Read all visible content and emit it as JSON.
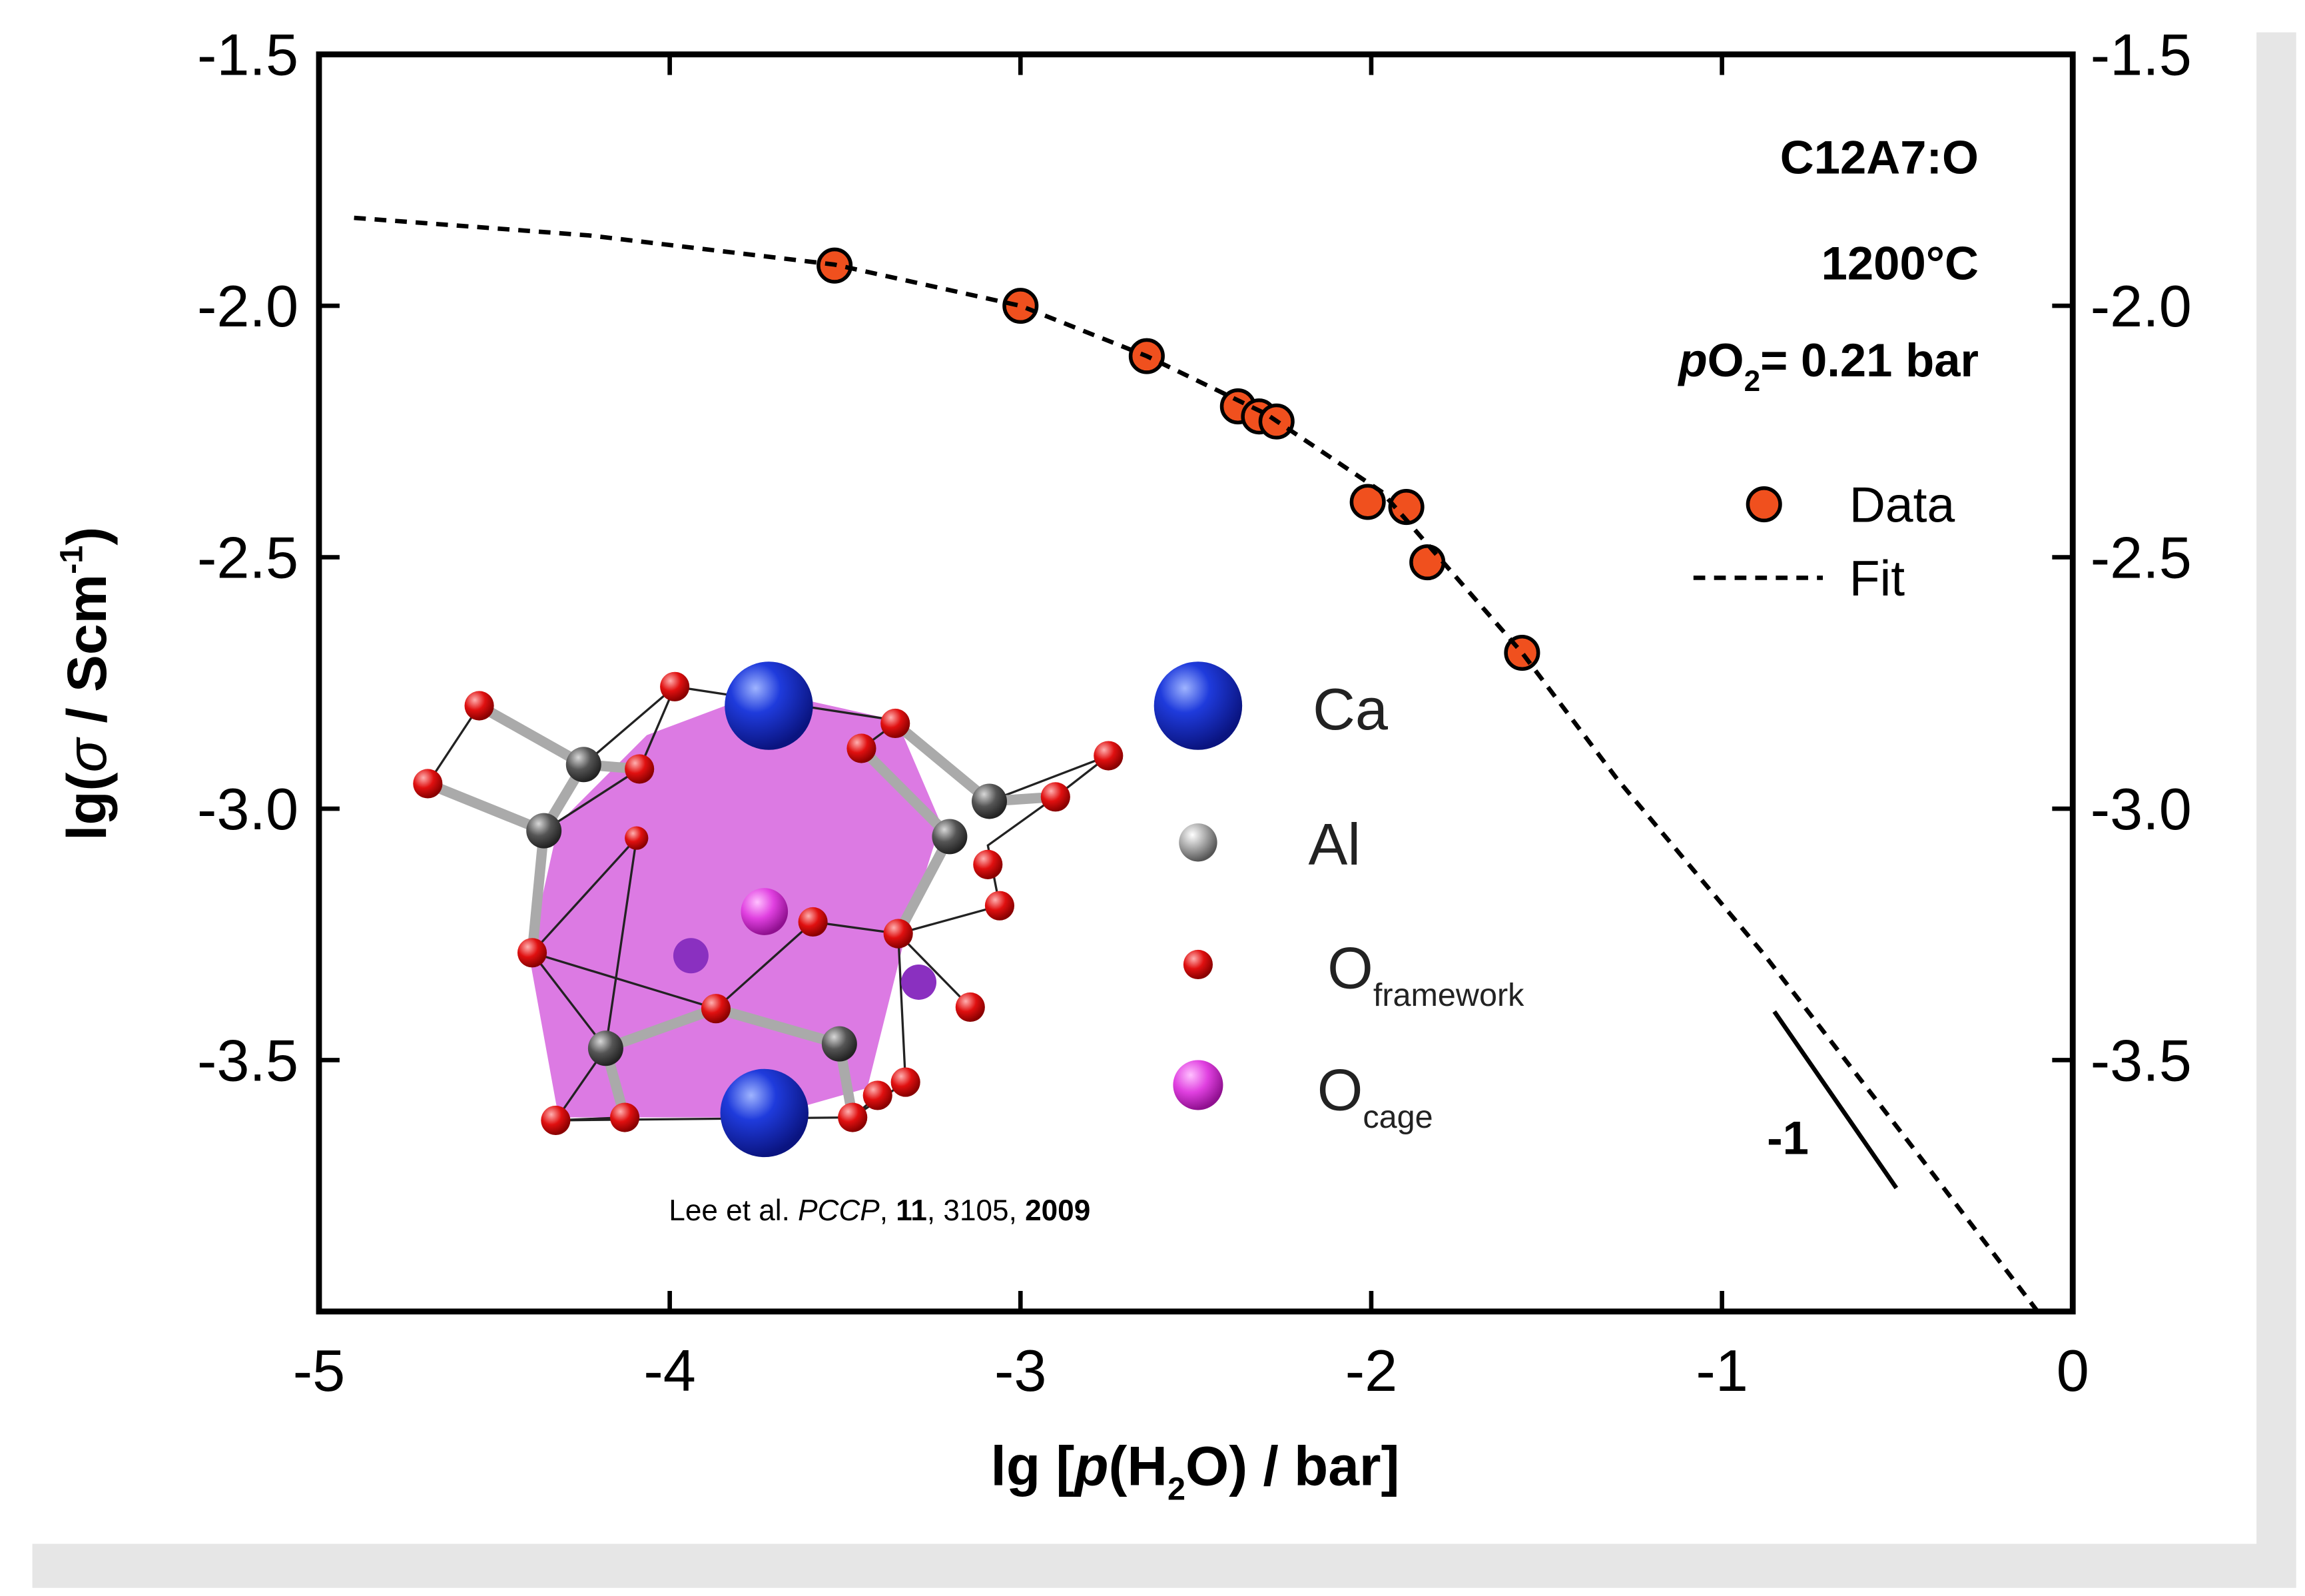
{
  "chart_data": {
    "type": "scatter",
    "xlabel_parts": [
      "lg [",
      "p",
      "(H",
      "2",
      "O) / bar]"
    ],
    "ylabel_parts": [
      "lg(",
      "σ",
      " / Scm",
      "-1",
      ")"
    ],
    "annotations": {
      "material": "C12A7:O",
      "temperature": "1200°C",
      "po2_parts": [
        "p",
        "O",
        "2",
        "= 0.21 bar"
      ],
      "slope": "-1"
    },
    "xlim": [
      -5,
      0
    ],
    "xticks": [
      -5,
      -4,
      -3,
      -2,
      -1,
      0
    ],
    "ylim": [
      -4.0,
      -1.5
    ],
    "yticks": [
      {
        "value": -3.5,
        "label": "-3.5"
      },
      {
        "value": -3,
        "label": "-3.0"
      },
      {
        "value": -2.5,
        "label": "-2.5"
      },
      {
        "value": -2,
        "label": "-2.0"
      },
      {
        "value": -1.5,
        "label": "-1.5"
      }
    ],
    "series": [
      {
        "name": "Data",
        "type": "scatter",
        "color": "#f0501e",
        "x": [
          -3.53,
          -3.0,
          -2.64,
          -2.38,
          -2.32,
          -2.27,
          -2.01,
          -1.9,
          -1.84,
          -1.57
        ],
        "values": [
          -1.92,
          -2.0,
          -2.1,
          -2.2,
          -2.22,
          -2.23,
          -2.39,
          -2.4,
          -2.51,
          -2.69
        ]
      },
      {
        "name": "Fit",
        "type": "line",
        "color": "#000000",
        "x": [
          -4.9,
          -4.23,
          -3.53,
          -3.0,
          -2.64,
          -2.3,
          -1.97,
          -1.57,
          -1.3,
          -0.88,
          -0.46,
          -0.1
        ],
        "values": [
          -1.825,
          -1.86,
          -1.918,
          -2.0,
          -2.1,
          -2.215,
          -2.37,
          -2.69,
          -2.94,
          -3.29,
          -3.67,
          -4.0
        ]
      }
    ],
    "inset": {
      "legend": [
        "Ca",
        "Al",
        {
          "base": "O",
          "sub": "framework"
        },
        {
          "base": "O",
          "sub": "cage"
        }
      ],
      "citation_parts": [
        "Lee et al. ",
        "PCCP",
        ", ",
        "11",
        ", 3105, ",
        "2009"
      ]
    }
  }
}
